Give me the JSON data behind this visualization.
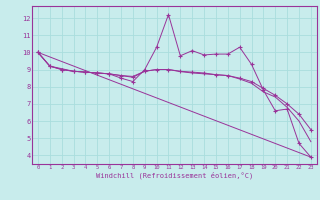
{
  "bg_color": "#c8ecec",
  "line_color": "#993399",
  "grid_color": "#aadddd",
  "xlabel": "Windchill (Refroidissement éolien,°C)",
  "ylabel_ticks": [
    4,
    5,
    6,
    7,
    8,
    9,
    10,
    11,
    12
  ],
  "xlim": [
    -0.5,
    23.5
  ],
  "ylim": [
    3.5,
    12.7
  ],
  "xticks": [
    0,
    1,
    2,
    3,
    4,
    5,
    6,
    7,
    8,
    9,
    10,
    11,
    12,
    13,
    14,
    15,
    16,
    17,
    18,
    19,
    20,
    21,
    22,
    23
  ],
  "series": [
    {
      "x": [
        0,
        1,
        2,
        3,
        4,
        5,
        6,
        7,
        8,
        9,
        10,
        11,
        12,
        13,
        14,
        15,
        16,
        17,
        18,
        19,
        20,
        21,
        22,
        23
      ],
      "y": [
        10.0,
        9.2,
        9.0,
        8.9,
        8.85,
        8.8,
        8.75,
        8.5,
        8.3,
        9.0,
        10.3,
        12.2,
        9.8,
        10.1,
        9.85,
        9.9,
        9.9,
        10.3,
        9.3,
        7.8,
        6.6,
        6.7,
        4.7,
        3.9
      ],
      "marker": "+"
    },
    {
      "x": [
        0,
        1,
        2,
        3,
        4,
        5,
        6,
        7,
        8,
        9,
        10,
        11,
        12,
        13,
        14,
        15,
        16,
        17,
        18,
        19,
        20,
        21,
        22,
        23
      ],
      "y": [
        10.0,
        9.2,
        9.0,
        8.9,
        8.85,
        8.8,
        8.75,
        8.65,
        8.55,
        8.9,
        9.0,
        9.0,
        8.9,
        8.85,
        8.8,
        8.7,
        8.65,
        8.5,
        8.3,
        7.9,
        7.5,
        7.0,
        6.4,
        5.5
      ],
      "marker": "+"
    },
    {
      "x": [
        0,
        1,
        2,
        3,
        4,
        5,
        6,
        7,
        8,
        9,
        10,
        11,
        12,
        13,
        14,
        15,
        16,
        17,
        18,
        19,
        20,
        21,
        22,
        23
      ],
      "y": [
        10.0,
        9.2,
        9.05,
        8.9,
        8.85,
        8.8,
        8.75,
        8.65,
        8.6,
        8.9,
        9.0,
        9.0,
        8.88,
        8.8,
        8.75,
        8.7,
        8.65,
        8.45,
        8.2,
        7.7,
        7.4,
        6.8,
        6.0,
        4.8
      ],
      "marker": null
    },
    {
      "x": [
        0,
        23
      ],
      "y": [
        10.0,
        3.9
      ],
      "marker": null
    }
  ]
}
